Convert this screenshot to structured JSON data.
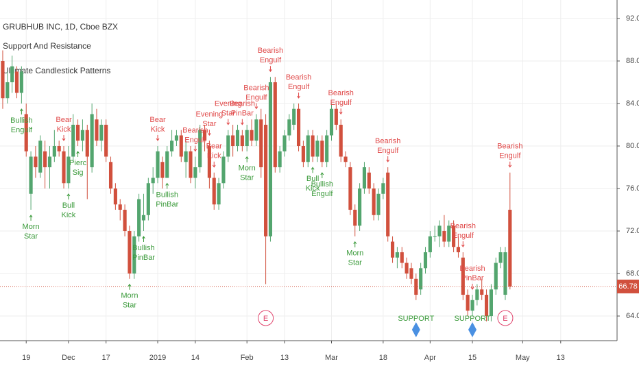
{
  "chart_data": {
    "type": "candlestick",
    "legend": [
      "GRUBHUB INC, 1D, Cboe BZX",
      "Support And Resistance",
      "Ultimate Candlestick Patterns"
    ],
    "open": [
      88.0,
      84.5,
      86.0,
      87.0,
      85.0,
      83.0,
      75.5,
      79.0,
      77.5,
      79.5,
      78.0,
      79.0,
      80.0,
      79.5,
      76.5,
      79.0,
      82.0,
      80.5,
      81.5,
      78.0,
      82.5,
      80.5,
      82.0,
      78.5,
      76.0,
      74.5,
      74.0,
      72.0,
      68.0,
      71.5,
      73.0,
      73.5,
      76.5,
      77.0,
      78.5,
      77.0,
      79.5,
      80.5,
      81.0,
      78.5,
      79.5,
      77.0,
      78.0,
      81.5,
      80.0,
      77.0,
      74.5,
      76.5,
      79.0,
      81.0,
      80.0,
      81.0,
      80.0,
      81.5,
      80.5,
      82.5,
      82.0,
      71.5,
      86.0,
      78.0,
      79.5,
      81.0,
      82.0,
      83.5,
      80.0,
      78.5,
      81.0,
      79.0,
      80.5,
      78.5,
      81.0,
      83.5,
      82.0,
      79.0,
      78.0,
      74.0,
      72.5,
      76.0,
      77.5,
      76.0,
      73.5,
      75.5,
      77.5,
      71.0,
      69.5,
      70.0,
      69.0,
      68.5,
      67.5,
      66.5,
      68.5,
      70.0,
      71.5,
      71.5,
      72.0,
      71.0,
      72.5,
      70.5,
      69.5,
      66.0,
      64.5,
      65.5,
      66.5,
      66.0,
      64.0,
      66.5,
      69.0,
      66.0,
      74.0
    ],
    "high": [
      89.0,
      87.0,
      88.5,
      87.5,
      87.5,
      84.0,
      79.5,
      80.0,
      81.0,
      80.5,
      80.0,
      81.5,
      80.5,
      80.0,
      80.0,
      83.0,
      82.5,
      82.5,
      82.0,
      84.0,
      83.5,
      82.5,
      82.5,
      79.0,
      76.5,
      75.0,
      74.5,
      72.5,
      72.0,
      75.5,
      75.5,
      77.0,
      78.0,
      80.0,
      79.0,
      80.0,
      81.5,
      81.5,
      81.5,
      80.5,
      80.0,
      79.0,
      82.0,
      82.0,
      80.5,
      77.5,
      77.0,
      79.5,
      81.5,
      82.0,
      82.0,
      81.5,
      82.0,
      82.5,
      83.0,
      83.5,
      83.0,
      86.5,
      86.5,
      80.0,
      81.5,
      83.0,
      84.0,
      84.0,
      80.5,
      81.5,
      81.5,
      81.0,
      81.0,
      81.5,
      84.0,
      84.0,
      82.5,
      79.5,
      78.5,
      74.5,
      76.5,
      78.5,
      78.0,
      76.5,
      76.0,
      77.0,
      78.0,
      71.5,
      70.5,
      70.5,
      69.5,
      69.0,
      68.0,
      69.0,
      70.5,
      72.0,
      72.5,
      73.0,
      73.5,
      73.0,
      73.0,
      71.5,
      70.0,
      66.5,
      66.0,
      67.0,
      67.5,
      66.5,
      67.0,
      69.5,
      70.5,
      70.5,
      77.5
    ],
    "low": [
      83.5,
      84.0,
      85.0,
      84.5,
      84.0,
      79.0,
      74.0,
      77.0,
      77.0,
      76.0,
      76.0,
      78.5,
      79.0,
      76.0,
      76.0,
      78.5,
      80.0,
      79.5,
      75.0,
      77.5,
      80.0,
      79.5,
      78.5,
      75.5,
      74.0,
      73.0,
      71.5,
      67.5,
      67.5,
      71.0,
      72.0,
      73.0,
      75.5,
      76.5,
      76.0,
      77.0,
      79.0,
      80.0,
      78.5,
      77.0,
      76.5,
      76.0,
      77.5,
      79.5,
      76.0,
      74.0,
      74.0,
      76.0,
      78.5,
      79.0,
      79.5,
      79.5,
      79.5,
      80.0,
      80.0,
      77.0,
      67.0,
      71.0,
      77.5,
      77.5,
      79.0,
      80.5,
      81.5,
      79.5,
      78.0,
      78.0,
      78.5,
      78.5,
      78.0,
      78.0,
      80.5,
      81.5,
      78.5,
      78.0,
      73.5,
      71.5,
      72.0,
      75.5,
      75.5,
      73.0,
      73.0,
      75.0,
      71.0,
      69.0,
      68.5,
      68.5,
      67.5,
      67.0,
      65.5,
      66.0,
      68.0,
      69.5,
      71.0,
      70.5,
      70.5,
      70.5,
      70.0,
      69.5,
      65.5,
      64.0,
      64.0,
      65.0,
      65.5,
      63.5,
      63.5,
      66.0,
      68.5,
      65.5,
      66.5
    ],
    "close": [
      84.5,
      86.0,
      87.5,
      85.0,
      87.0,
      79.5,
      79.0,
      78.0,
      80.5,
      78.0,
      79.0,
      80.0,
      79.5,
      76.5,
      79.0,
      82.0,
      80.5,
      81.5,
      79.0,
      83.0,
      80.5,
      82.0,
      79.0,
      76.0,
      74.5,
      74.0,
      72.0,
      68.0,
      71.5,
      75.0,
      73.5,
      76.5,
      77.0,
      79.5,
      77.0,
      79.5,
      80.5,
      81.0,
      79.0,
      79.5,
      77.0,
      78.0,
      81.5,
      80.5,
      77.0,
      74.5,
      76.5,
      79.0,
      81.0,
      80.0,
      81.5,
      80.0,
      81.5,
      80.5,
      82.5,
      78.0,
      71.5,
      86.0,
      78.0,
      79.5,
      81.0,
      82.5,
      83.5,
      80.0,
      78.5,
      81.0,
      79.0,
      80.5,
      78.5,
      81.0,
      83.5,
      82.0,
      79.0,
      78.5,
      74.0,
      72.5,
      76.0,
      78.0,
      76.0,
      73.5,
      75.5,
      76.5,
      71.5,
      69.5,
      70.0,
      69.0,
      68.0,
      67.5,
      66.0,
      68.5,
      70.0,
      71.5,
      71.5,
      72.5,
      71.0,
      72.5,
      70.5,
      70.0,
      66.0,
      64.5,
      65.5,
      66.5,
      66.0,
      64.0,
      66.5,
      69.0,
      70.0,
      70.0,
      66.78
    ],
    "up_color": "#53a56e",
    "down_color": "#d1503d",
    "bearish_color": "#e04848",
    "bullish_color": "#3a9a3a",
    "xlim": [
      -0.58,
      130.8
    ],
    "xticks": [
      {
        "value": 5,
        "label": "19"
      },
      {
        "value": 14,
        "label": "Dec"
      },
      {
        "value": 22,
        "label": "17"
      },
      {
        "value": 33,
        "label": "2019"
      },
      {
        "value": 41,
        "label": "14"
      },
      {
        "value": 52,
        "label": "Feb"
      },
      {
        "value": 60,
        "label": "13"
      },
      {
        "value": 70,
        "label": "Mar"
      },
      {
        "value": 81,
        "label": "18"
      },
      {
        "value": 91,
        "label": "Apr"
      },
      {
        "value": 100,
        "label": "15"
      },
      {
        "value": 110.7,
        "label": "May"
      },
      {
        "value": 118.8,
        "label": "13"
      }
    ],
    "ylim": [
      61.68,
      93.74
    ],
    "yticks": [
      {
        "value": 64,
        "label": "64.00"
      },
      {
        "value": 68,
        "label": "68.00"
      },
      {
        "value": 72,
        "label": "72.00"
      },
      {
        "value": 76,
        "label": "76.00"
      },
      {
        "value": 80,
        "label": "80.00"
      },
      {
        "value": 84,
        "label": "84.00"
      },
      {
        "value": 88,
        "label": "88.00"
      },
      {
        "value": 92,
        "label": "92.00"
      }
    ],
    "grid": true,
    "patterns": [
      {
        "candle": 4,
        "side": "below",
        "text": [
          "Bullish",
          "Engulf"
        ]
      },
      {
        "candle": 6,
        "side": "below",
        "text": [
          "Morn",
          "Star"
        ]
      },
      {
        "candle": 13,
        "side": "above",
        "text": [
          "Bear",
          "Kick"
        ]
      },
      {
        "candle": 14,
        "side": "below",
        "text": [
          "Bull",
          "Kick"
        ]
      },
      {
        "candle": 16,
        "side": "below",
        "text": [
          "Pierc",
          "Sig"
        ]
      },
      {
        "candle": 27,
        "side": "below",
        "text": [
          "Morn",
          "Star"
        ]
      },
      {
        "candle": 30,
        "side": "below",
        "text": [
          "Bullish",
          "PinBar"
        ]
      },
      {
        "candle": 33,
        "side": "above",
        "text": [
          "Bear",
          "Kick"
        ]
      },
      {
        "candle": 35,
        "side": "below",
        "text": [
          "Bullish",
          "PinBar"
        ]
      },
      {
        "candle": 41,
        "side": "above",
        "text": [
          "Bearish",
          "Engulf"
        ]
      },
      {
        "candle": 44,
        "side": "above",
        "text": [
          "Evening",
          "Star"
        ]
      },
      {
        "candle": 45,
        "side": "above",
        "text": [
          "Bear",
          "Kick"
        ]
      },
      {
        "candle": 48,
        "side": "above",
        "text": [
          "Evening",
          "Star"
        ]
      },
      {
        "candle": 51,
        "side": "above",
        "text": [
          "Bearish",
          "PinBar"
        ]
      },
      {
        "candle": 52,
        "side": "below",
        "text": [
          "Morn",
          "Star"
        ]
      },
      {
        "candle": 54,
        "side": "above",
        "text": [
          "Bearish",
          "Engulf"
        ]
      },
      {
        "candle": 57,
        "side": "above",
        "text": [
          "Bearish",
          "Engulf"
        ]
      },
      {
        "candle": 63,
        "side": "above",
        "text": [
          "Bearish",
          "Engulf"
        ]
      },
      {
        "candle": 66,
        "side": "below",
        "text": [
          "Bull",
          "Kick"
        ]
      },
      {
        "candle": 68,
        "side": "below",
        "text": [
          "Bullish",
          "Engulf"
        ]
      },
      {
        "candle": 72,
        "side": "above",
        "text": [
          "Bearish",
          "Engulf"
        ]
      },
      {
        "candle": 75,
        "side": "below",
        "text": [
          "Morn",
          "Star"
        ]
      },
      {
        "candle": 82,
        "side": "above",
        "text": [
          "Bearish",
          "Engulf"
        ]
      },
      {
        "candle": 98,
        "side": "above",
        "text": [
          "Bearish",
          "Engulf"
        ]
      },
      {
        "candle": 100,
        "side": "above",
        "text": [
          "Bearish",
          "PinBar"
        ]
      },
      {
        "candle": 108,
        "side": "above",
        "text": [
          "Bearish",
          "Engulf"
        ]
      }
    ],
    "supports": [
      {
        "candle": 88,
        "text": "SUPPORT"
      },
      {
        "candle": 100,
        "text": "SUPPORT"
      }
    ],
    "support_color": "#4a90e2",
    "earnings": [
      {
        "candle": 56,
        "text": "E"
      },
      {
        "candle": 107,
        "text": "E"
      }
    ],
    "earnings_color": "#e0466e",
    "last_color": "#d1503d"
  }
}
